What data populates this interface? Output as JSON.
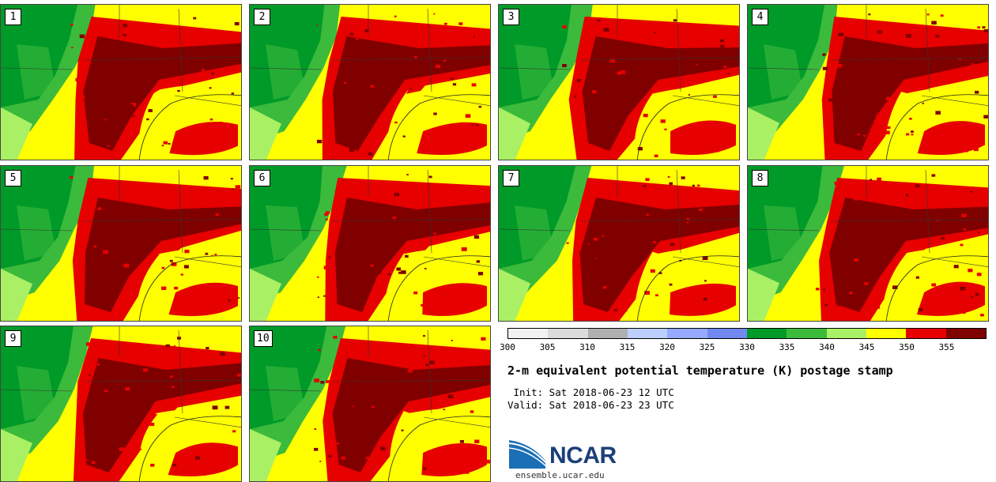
{
  "stamps": [
    {
      "label": "1"
    },
    {
      "label": "2"
    },
    {
      "label": "3"
    },
    {
      "label": "4"
    },
    {
      "label": "5"
    },
    {
      "label": "6"
    },
    {
      "label": "7"
    },
    {
      "label": "8"
    },
    {
      "label": "9"
    },
    {
      "label": "10"
    }
  ],
  "colorbar": {
    "ticks": [
      "300",
      "305",
      "310",
      "315",
      "320",
      "325",
      "330",
      "335",
      "340",
      "345",
      "350",
      "355"
    ],
    "colors": [
      "#f2f2f2",
      "#dcdcdc",
      "#b0b0b0",
      "#bccfff",
      "#96aaff",
      "#7088f0",
      "#009a28",
      "#3cba3c",
      "#aaf064",
      "#ffff00",
      "#e60000",
      "#800000"
    ]
  },
  "title": "2-m equivalent potential temperature (K) postage stamp",
  "init": " Init: Sat 2018-06-23 12 UTC",
  "valid": "Valid: Sat 2018-06-23 23 UTC",
  "logo": {
    "name": "NCAR",
    "url": "ensemble.ucar.edu"
  }
}
